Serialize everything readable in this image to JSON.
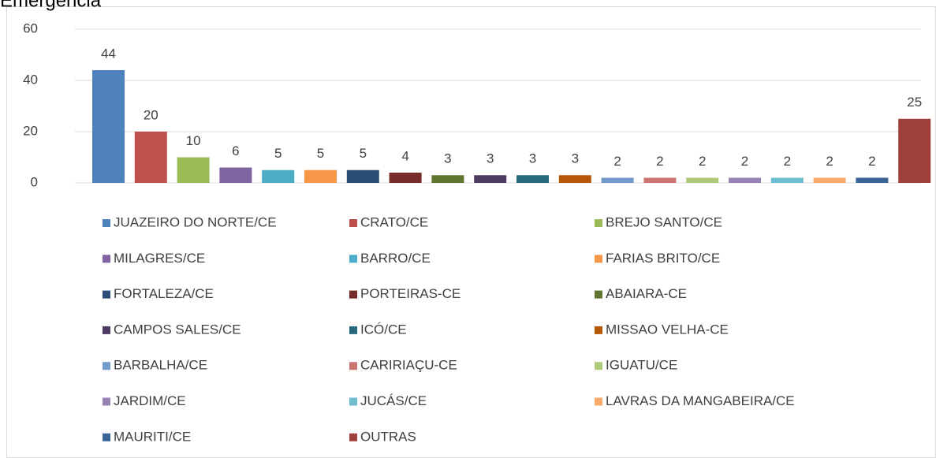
{
  "chart_data": {
    "type": "bar",
    "title": "Emergência",
    "categories": [
      null
    ],
    "series": [
      {
        "name": "JUAZEIRO DO NORTE/CE",
        "color": "#4f81bd",
        "values": [
          44
        ]
      },
      {
        "name": "CRATO/CE",
        "color": "#c0504d",
        "values": [
          20
        ]
      },
      {
        "name": "BREJO SANTO/CE",
        "color": "#9bbb59",
        "values": [
          10
        ]
      },
      {
        "name": "MILAGRES/CE",
        "color": "#8064a2",
        "values": [
          6
        ]
      },
      {
        "name": "BARRO/CE",
        "color": "#4bacc6",
        "values": [
          5
        ]
      },
      {
        "name": "FARIAS BRITO/CE",
        "color": "#f79646",
        "values": [
          5
        ]
      },
      {
        "name": "FORTALEZA/CE",
        "color": "#2c4d75",
        "values": [
          5
        ]
      },
      {
        "name": "PORTEIRAS-CE",
        "color": "#772c2a",
        "values": [
          4
        ]
      },
      {
        "name": "ABAIARA-CE",
        "color": "#5f7530",
        "values": [
          3
        ]
      },
      {
        "name": "CAMPOS SALES/CE",
        "color": "#4d3b62",
        "values": [
          3
        ]
      },
      {
        "name": "ICÓ/CE",
        "color": "#276a7c",
        "values": [
          3
        ]
      },
      {
        "name": "MISSAO VELHA-CE",
        "color": "#b65708",
        "values": [
          3
        ]
      },
      {
        "name": "BARBALHA/CE",
        "color": "#729aca",
        "values": [
          2
        ]
      },
      {
        "name": "CARIRIAÇU-CE",
        "color": "#cd7371",
        "values": [
          2
        ]
      },
      {
        "name": "IGUATU/CE",
        "color": "#afc97a",
        "values": [
          2
        ]
      },
      {
        "name": "JARDIM/CE",
        "color": "#9983b5",
        "values": [
          2
        ]
      },
      {
        "name": "JUCÁS/CE",
        "color": "#6fbdd1",
        "values": [
          2
        ]
      },
      {
        "name": "LAVRAS DA MANGABEIRA/CE",
        "color": "#f9ab6b",
        "values": [
          2
        ]
      },
      {
        "name": "MAURITI/CE",
        "color": "#3a6496",
        "values": [
          2
        ]
      },
      {
        "name": "OUTRAS",
        "color": "#a0403d",
        "values": [
          25
        ]
      }
    ],
    "ylim": [
      0,
      60
    ],
    "yticks": [
      0,
      20,
      40,
      60
    ],
    "grid": true,
    "legend": "bottom"
  }
}
